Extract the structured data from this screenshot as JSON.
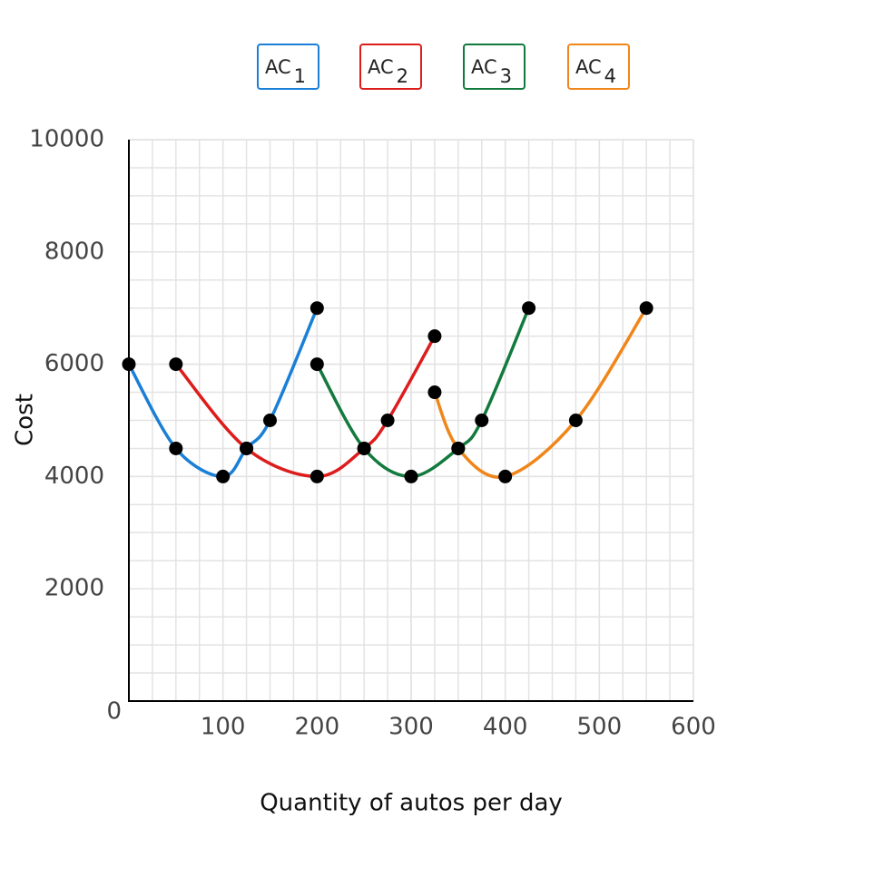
{
  "chart_data": {
    "type": "line",
    "x_label": "Quantity of autos per day",
    "y_label": "Cost",
    "xlim": [
      0,
      600
    ],
    "xticks": [
      100,
      200,
      300,
      400,
      500,
      600
    ],
    "ylim": [
      0,
      10000
    ],
    "yticks": [
      0,
      2000,
      4000,
      6000,
      8000,
      10000
    ],
    "grid": true,
    "series": [
      {
        "name": "AC1",
        "color": "#1a7fd6",
        "x": [
          0,
          50,
          100,
          125,
          150,
          200
        ],
        "values": [
          6000,
          4500,
          4000,
          4500,
          5000,
          7000
        ]
      },
      {
        "name": "AC2",
        "color": "#dd1c1c",
        "x": [
          50,
          125,
          200,
          250,
          275,
          325
        ],
        "values": [
          6000,
          4500,
          4000,
          4500,
          5000,
          6500
        ]
      },
      {
        "name": "AC3",
        "color": "#137a3e",
        "x": [
          200,
          250,
          300,
          350,
          375,
          425
        ],
        "values": [
          6000,
          4500,
          4000,
          4500,
          5000,
          7000
        ]
      },
      {
        "name": "AC4",
        "color": "#f0861a",
        "x": [
          325,
          350,
          400,
          475,
          550
        ],
        "values": [
          5500,
          4500,
          4000,
          5000,
          7000
        ]
      }
    ]
  }
}
